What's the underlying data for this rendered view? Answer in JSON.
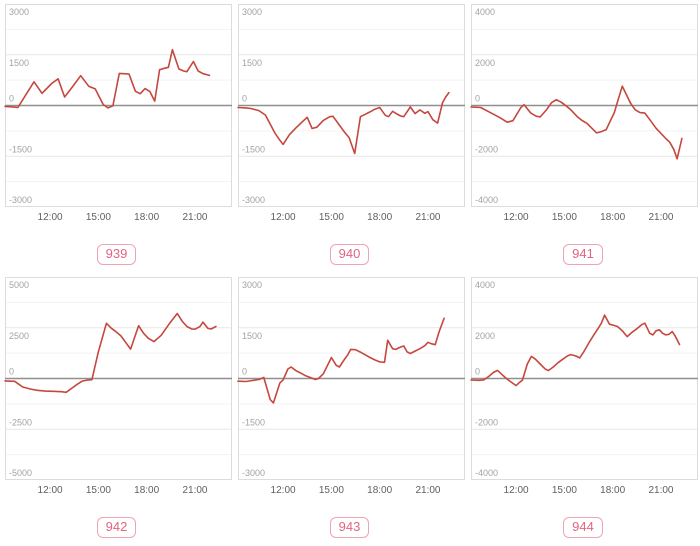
{
  "x_axis": {
    "range": [
      9.2,
      23.3
    ],
    "ticks": [
      12,
      15,
      18,
      21
    ],
    "labels": [
      "12:00",
      "15:00",
      "18:00",
      "21:00"
    ]
  },
  "colors": {
    "line": "#c6473e",
    "zero_line": "#8f8f8f",
    "grid_major": "#e7e7e7",
    "grid_minor": "#f3f3f3",
    "plot_border": "#dcdcdc",
    "badge_text": "#e26482",
    "badge_border": "#eda4b6",
    "y_tick_label": "#a2a2a2",
    "x_tick_label": "#5f5f5f"
  },
  "chart_data": [
    {
      "type": "line",
      "badge": "939",
      "ylim": [
        -3000,
        3000
      ],
      "y_tick_values": [
        3000,
        1500,
        0,
        -1500,
        -3000
      ],
      "y_tick_labels": [
        "3000",
        "1500",
        "0",
        "-1500",
        "-3000"
      ],
      "points": [
        [
          9.2,
          -30
        ],
        [
          9.7,
          -40
        ],
        [
          10.0,
          -60
        ],
        [
          10.5,
          320
        ],
        [
          11.0,
          700
        ],
        [
          11.5,
          360
        ],
        [
          12.1,
          650
        ],
        [
          12.5,
          790
        ],
        [
          12.9,
          250
        ],
        [
          13.4,
          560
        ],
        [
          13.9,
          880
        ],
        [
          14.4,
          570
        ],
        [
          14.8,
          490
        ],
        [
          15.3,
          30
        ],
        [
          15.6,
          -70
        ],
        [
          15.9,
          -10
        ],
        [
          16.3,
          950
        ],
        [
          16.9,
          930
        ],
        [
          17.3,
          420
        ],
        [
          17.6,
          350
        ],
        [
          17.9,
          500
        ],
        [
          18.2,
          410
        ],
        [
          18.5,
          130
        ],
        [
          18.8,
          1060
        ],
        [
          19.1,
          1100
        ],
        [
          19.35,
          1130
        ],
        [
          19.6,
          1650
        ],
        [
          20.0,
          1080
        ],
        [
          20.3,
          1020
        ],
        [
          20.5,
          1000
        ],
        [
          20.9,
          1300
        ],
        [
          21.2,
          1020
        ],
        [
          21.5,
          940
        ],
        [
          21.9,
          890
        ]
      ]
    },
    {
      "type": "line",
      "badge": "940",
      "ylim": [
        -3000,
        3000
      ],
      "y_tick_values": [
        3000,
        1500,
        0,
        -1500,
        -3000
      ],
      "y_tick_labels": [
        "3000",
        "1500",
        "0",
        "-1500",
        "-3000"
      ],
      "points": [
        [
          9.2,
          -60
        ],
        [
          9.7,
          -70
        ],
        [
          10.0,
          -90
        ],
        [
          10.5,
          -150
        ],
        [
          10.9,
          -280
        ],
        [
          11.5,
          -820
        ],
        [
          11.8,
          -1030
        ],
        [
          12.0,
          -1150
        ],
        [
          12.4,
          -860
        ],
        [
          12.8,
          -660
        ],
        [
          13.2,
          -480
        ],
        [
          13.5,
          -350
        ],
        [
          13.8,
          -680
        ],
        [
          14.1,
          -640
        ],
        [
          14.5,
          -440
        ],
        [
          14.9,
          -330
        ],
        [
          15.1,
          -320
        ],
        [
          15.5,
          -580
        ],
        [
          15.8,
          -780
        ],
        [
          16.1,
          -950
        ],
        [
          16.45,
          -1420
        ],
        [
          16.8,
          -330
        ],
        [
          17.1,
          -260
        ],
        [
          17.4,
          -190
        ],
        [
          17.7,
          -110
        ],
        [
          18.0,
          -60
        ],
        [
          18.35,
          -290
        ],
        [
          18.55,
          -330
        ],
        [
          18.8,
          -170
        ],
        [
          19.0,
          -230
        ],
        [
          19.3,
          -310
        ],
        [
          19.5,
          -330
        ],
        [
          19.9,
          -40
        ],
        [
          20.2,
          -240
        ],
        [
          20.5,
          -130
        ],
        [
          20.8,
          -230
        ],
        [
          21.0,
          -180
        ],
        [
          21.3,
          -420
        ],
        [
          21.6,
          -520
        ],
        [
          21.9,
          80
        ],
        [
          22.1,
          250
        ],
        [
          22.3,
          380
        ]
      ]
    },
    {
      "type": "line",
      "badge": "941",
      "ylim": [
        -4000,
        4000
      ],
      "y_tick_values": [
        4000,
        2000,
        0,
        -2000,
        -4000
      ],
      "y_tick_labels": [
        "4000",
        "2000",
        "0",
        "-2000",
        "-4000"
      ],
      "points": [
        [
          9.2,
          -60
        ],
        [
          9.8,
          -80
        ],
        [
          10.4,
          -280
        ],
        [
          11.0,
          -480
        ],
        [
          11.45,
          -660
        ],
        [
          11.8,
          -600
        ],
        [
          12.3,
          -80
        ],
        [
          12.5,
          30
        ],
        [
          12.9,
          -290
        ],
        [
          13.25,
          -420
        ],
        [
          13.5,
          -450
        ],
        [
          13.9,
          -160
        ],
        [
          14.2,
          110
        ],
        [
          14.5,
          230
        ],
        [
          14.8,
          130
        ],
        [
          15.1,
          -10
        ],
        [
          15.4,
          -170
        ],
        [
          15.8,
          -440
        ],
        [
          16.1,
          -590
        ],
        [
          16.4,
          -700
        ],
        [
          16.7,
          -890
        ],
        [
          17.0,
          -1080
        ],
        [
          17.3,
          -1030
        ],
        [
          17.6,
          -950
        ],
        [
          18.1,
          -280
        ],
        [
          18.35,
          250
        ],
        [
          18.6,
          760
        ],
        [
          18.85,
          430
        ],
        [
          19.1,
          100
        ],
        [
          19.4,
          -170
        ],
        [
          19.7,
          -280
        ],
        [
          20.0,
          -300
        ],
        [
          20.4,
          -640
        ],
        [
          20.7,
          -900
        ],
        [
          21.0,
          -1100
        ],
        [
          21.3,
          -1300
        ],
        [
          21.55,
          -1450
        ],
        [
          21.8,
          -1740
        ],
        [
          22.0,
          -2100
        ],
        [
          22.3,
          -1300
        ]
      ]
    },
    {
      "type": "line",
      "badge": "942",
      "ylim": [
        -5000,
        5000
      ],
      "y_tick_values": [
        5000,
        2500,
        0,
        -2500,
        -5000
      ],
      "y_tick_labels": [
        "5000",
        "2500",
        "0",
        "-2500",
        "-5000"
      ],
      "points": [
        [
          9.2,
          -120
        ],
        [
          9.8,
          -140
        ],
        [
          10.3,
          -420
        ],
        [
          10.8,
          -520
        ],
        [
          11.2,
          -580
        ],
        [
          11.7,
          -620
        ],
        [
          12.2,
          -630
        ],
        [
          12.7,
          -650
        ],
        [
          13.0,
          -680
        ],
        [
          13.4,
          -450
        ],
        [
          13.7,
          -280
        ],
        [
          14.0,
          -130
        ],
        [
          14.3,
          -80
        ],
        [
          14.6,
          -60
        ],
        [
          15.0,
          1320
        ],
        [
          15.5,
          2720
        ],
        [
          15.8,
          2480
        ],
        [
          16.1,
          2300
        ],
        [
          16.4,
          2100
        ],
        [
          17.0,
          1450
        ],
        [
          17.5,
          2600
        ],
        [
          17.8,
          2230
        ],
        [
          18.1,
          1980
        ],
        [
          18.45,
          1820
        ],
        [
          18.9,
          2130
        ],
        [
          19.2,
          2470
        ],
        [
          19.5,
          2800
        ],
        [
          19.9,
          3200
        ],
        [
          20.2,
          2830
        ],
        [
          20.5,
          2560
        ],
        [
          20.8,
          2440
        ],
        [
          21.0,
          2430
        ],
        [
          21.3,
          2550
        ],
        [
          21.5,
          2780
        ],
        [
          21.8,
          2470
        ],
        [
          22.0,
          2440
        ],
        [
          22.3,
          2560
        ]
      ]
    },
    {
      "type": "line",
      "badge": "943",
      "ylim": [
        -3000,
        3000
      ],
      "y_tick_values": [
        3000,
        1500,
        0,
        -1500,
        -3000
      ],
      "y_tick_labels": [
        "3000",
        "1500",
        "0",
        "-1500",
        "-3000"
      ],
      "points": [
        [
          9.2,
          -80
        ],
        [
          9.7,
          -90
        ],
        [
          10.1,
          -60
        ],
        [
          10.5,
          -30
        ],
        [
          10.8,
          30
        ],
        [
          11.2,
          -620
        ],
        [
          11.4,
          -720
        ],
        [
          11.8,
          -130
        ],
        [
          12.0,
          -40
        ],
        [
          12.3,
          280
        ],
        [
          12.5,
          340
        ],
        [
          12.8,
          230
        ],
        [
          13.1,
          160
        ],
        [
          13.4,
          80
        ],
        [
          13.7,
          30
        ],
        [
          14.0,
          -30
        ],
        [
          14.2,
          0
        ],
        [
          14.5,
          140
        ],
        [
          14.8,
          430
        ],
        [
          15.0,
          620
        ],
        [
          15.3,
          390
        ],
        [
          15.5,
          340
        ],
        [
          15.8,
          560
        ],
        [
          16.0,
          690
        ],
        [
          16.2,
          860
        ],
        [
          16.5,
          850
        ],
        [
          16.8,
          780
        ],
        [
          17.1,
          700
        ],
        [
          17.4,
          620
        ],
        [
          17.7,
          550
        ],
        [
          18.0,
          490
        ],
        [
          18.3,
          480
        ],
        [
          18.5,
          1130
        ],
        [
          18.8,
          880
        ],
        [
          19.0,
          860
        ],
        [
          19.3,
          930
        ],
        [
          19.5,
          960
        ],
        [
          19.7,
          790
        ],
        [
          19.9,
          740
        ],
        [
          20.2,
          810
        ],
        [
          20.5,
          880
        ],
        [
          20.8,
          970
        ],
        [
          21.0,
          1070
        ],
        [
          21.2,
          1030
        ],
        [
          21.45,
          1000
        ],
        [
          21.7,
          1390
        ],
        [
          22.0,
          1780
        ]
      ]
    },
    {
      "type": "line",
      "badge": "944",
      "ylim": [
        -4000,
        4000
      ],
      "y_tick_values": [
        4000,
        2000,
        0,
        -2000,
        -4000
      ],
      "y_tick_labels": [
        "4000",
        "2000",
        "0",
        "-2000",
        "-4000"
      ],
      "points": [
        [
          9.2,
          -60
        ],
        [
          9.7,
          -70
        ],
        [
          10.0,
          -50
        ],
        [
          10.3,
          80
        ],
        [
          10.6,
          240
        ],
        [
          10.85,
          320
        ],
        [
          11.1,
          170
        ],
        [
          11.4,
          0
        ],
        [
          11.7,
          -140
        ],
        [
          12.0,
          -280
        ],
        [
          12.2,
          -160
        ],
        [
          12.4,
          -60
        ],
        [
          12.7,
          570
        ],
        [
          12.95,
          870
        ],
        [
          13.2,
          760
        ],
        [
          13.5,
          570
        ],
        [
          13.8,
          380
        ],
        [
          14.0,
          310
        ],
        [
          14.3,
          450
        ],
        [
          14.6,
          620
        ],
        [
          14.9,
          760
        ],
        [
          15.2,
          890
        ],
        [
          15.4,
          940
        ],
        [
          15.7,
          890
        ],
        [
          15.95,
          810
        ],
        [
          16.2,
          1050
        ],
        [
          16.5,
          1380
        ],
        [
          16.8,
          1690
        ],
        [
          17.1,
          1980
        ],
        [
          17.3,
          2180
        ],
        [
          17.5,
          2500
        ],
        [
          17.8,
          2140
        ],
        [
          18.1,
          2090
        ],
        [
          18.3,
          2050
        ],
        [
          18.6,
          1880
        ],
        [
          18.9,
          1650
        ],
        [
          19.2,
          1820
        ],
        [
          19.5,
          1960
        ],
        [
          19.8,
          2120
        ],
        [
          20.0,
          2180
        ],
        [
          20.3,
          1780
        ],
        [
          20.5,
          1720
        ],
        [
          20.7,
          1880
        ],
        [
          20.9,
          1920
        ],
        [
          21.1,
          1780
        ],
        [
          21.3,
          1720
        ],
        [
          21.5,
          1740
        ],
        [
          21.7,
          1850
        ],
        [
          21.9,
          1650
        ],
        [
          22.15,
          1340
        ]
      ]
    }
  ]
}
